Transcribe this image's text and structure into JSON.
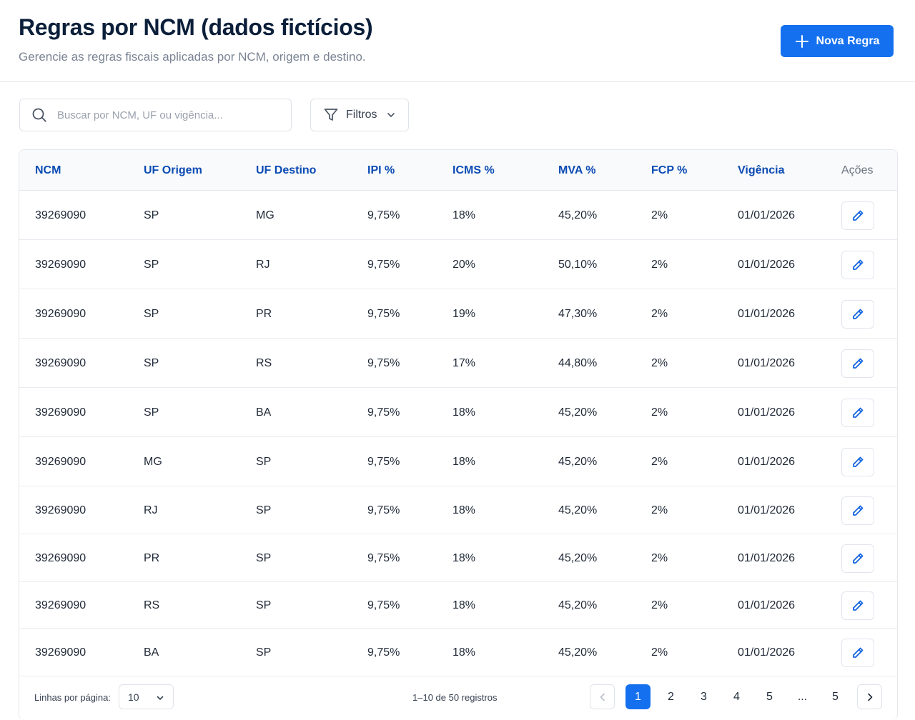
{
  "header": {
    "title": "Regras por NCM (dados fictícios)",
    "subtitle": "Gerencie as regras fiscais aplicadas por NCM, origem e destino.",
    "new_button_label": "Nova Regra"
  },
  "toolbar": {
    "search_placeholder": "Buscar por NCM, UF ou vigência...",
    "search_value": "",
    "filters_label": "Filtros"
  },
  "colors": {
    "accent": "#1570ef",
    "header_text": "#0b4bb3",
    "title": "#0b1f3a"
  },
  "table": {
    "columns": [
      "NCM",
      "UF Origem",
      "UF Destino",
      "IPI %",
      "ICMS %",
      "MVA %",
      "FCP %",
      "Vigência",
      "Ações"
    ],
    "rows": [
      [
        "39269090",
        "SP",
        "MG",
        "9,75%",
        "18%",
        "45,20%",
        "2%",
        "01/01/2026"
      ],
      [
        "39269090",
        "SP",
        "RJ",
        "9,75%",
        "20%",
        "50,10%",
        "2%",
        "01/01/2026"
      ],
      [
        "39269090",
        "SP",
        "PR",
        "9,75%",
        "19%",
        "47,30%",
        "2%",
        "01/01/2026"
      ],
      [
        "39269090",
        "SP",
        "RS",
        "9,75%",
        "17%",
        "44,80%",
        "2%",
        "01/01/2026"
      ],
      [
        "39269090",
        "SP",
        "BA",
        "9,75%",
        "18%",
        "45,20%",
        "2%",
        "01/01/2026"
      ],
      [
        "39269090",
        "MG",
        "SP",
        "9,75%",
        "18%",
        "45,20%",
        "2%",
        "01/01/2026"
      ],
      [
        "39269090",
        "RJ",
        "SP",
        "9,75%",
        "18%",
        "45,20%",
        "2%",
        "01/01/2026"
      ],
      [
        "39269090",
        "PR",
        "SP",
        "9,75%",
        "18%",
        "45,20%",
        "2%",
        "01/01/2026"
      ],
      [
        "39269090",
        "RS",
        "SP",
        "9,75%",
        "18%",
        "45,20%",
        "2%",
        "01/01/2026"
      ],
      [
        "39269090",
        "BA",
        "SP",
        "9,75%",
        "18%",
        "45,20%",
        "2%",
        "01/01/2026"
      ]
    ],
    "row_action_icon": "pencil-icon"
  },
  "footer": {
    "rows_per_page_label": "Linhas por página:",
    "rows_per_page_value": "10",
    "range_text": "1–10 de 50 registros",
    "pages": [
      "1",
      "2",
      "3",
      "4",
      "5",
      "...",
      "5"
    ],
    "active_page": "1"
  },
  "icons": {
    "new_button": "plus-icon",
    "search": "search-icon",
    "filters": "filter-icon",
    "dropdown": "chevron-down-icon",
    "prev": "chevron-left-icon",
    "next": "chevron-right-icon"
  }
}
